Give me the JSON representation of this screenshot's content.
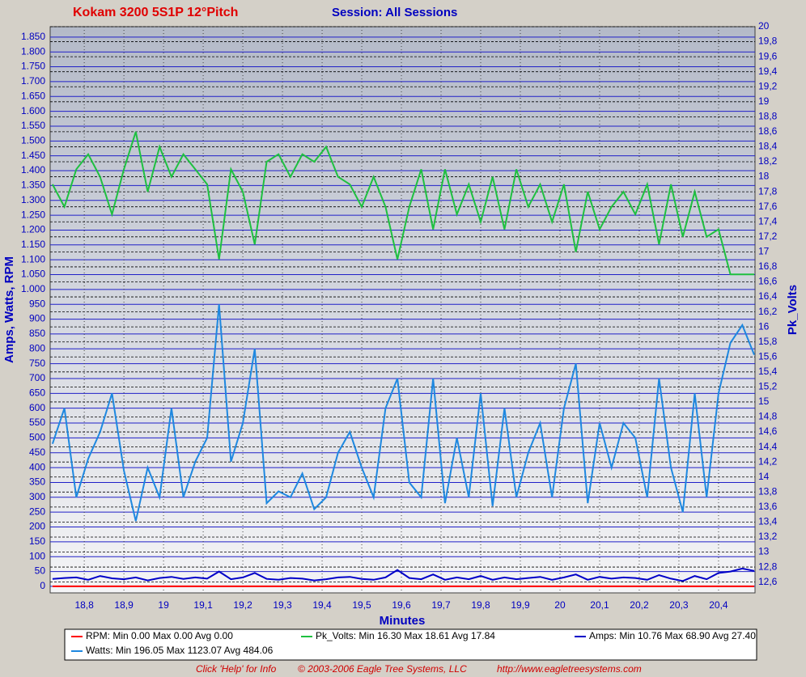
{
  "chart_data": {
    "type": "line",
    "title": "Kokam 3200 5S1P 12°Pitch",
    "subtitle": "Session: All Sessions",
    "x_label": "Minutes",
    "y_label": "Amps, Watts, RPM",
    "y2_label": "Pk_Volts",
    "xlim": [
      18.714,
      20.492
    ],
    "ylim": [
      -22,
      1885
    ],
    "y2lim": [
      12.456,
      20
    ],
    "grid": true,
    "xticks": [
      {
        "value": 18.8,
        "label": "18,8"
      },
      {
        "value": 18.9,
        "label": "18,9"
      },
      19,
      {
        "value": 19.1,
        "label": "19,1"
      },
      {
        "value": 19.2,
        "label": "19,2"
      },
      {
        "value": 19.3,
        "label": "19,3"
      },
      {
        "value": 19.4,
        "label": "19,4"
      },
      {
        "value": 19.5,
        "label": "19,5"
      },
      {
        "value": 19.6,
        "label": "19,6"
      },
      {
        "value": 19.7,
        "label": "19,7"
      },
      {
        "value": 19.8,
        "label": "19,8"
      },
      {
        "value": 19.9,
        "label": "19,9"
      },
      20,
      {
        "value": 20.1,
        "label": "20,1"
      },
      {
        "value": 20.2,
        "label": "20,2"
      },
      {
        "value": 20.3,
        "label": "20,3"
      },
      {
        "value": 20.4,
        "label": "20,4"
      }
    ],
    "yticks": [
      0,
      50,
      100,
      150,
      200,
      250,
      300,
      350,
      400,
      450,
      500,
      550,
      600,
      650,
      700,
      750,
      800,
      850,
      900,
      950,
      {
        "value": 1000,
        "label": "1.000"
      },
      {
        "value": 1050,
        "label": "1.050"
      },
      {
        "value": 1100,
        "label": "1.100"
      },
      {
        "value": 1150,
        "label": "1.150"
      },
      {
        "value": 1200,
        "label": "1.200"
      },
      {
        "value": 1250,
        "label": "1.250"
      },
      {
        "value": 1300,
        "label": "1.300"
      },
      {
        "value": 1350,
        "label": "1.350"
      },
      {
        "value": 1400,
        "label": "1.400"
      },
      {
        "value": 1450,
        "label": "1.450"
      },
      {
        "value": 1500,
        "label": "1.500"
      },
      {
        "value": 1550,
        "label": "1.550"
      },
      {
        "value": 1600,
        "label": "1.600"
      },
      {
        "value": 1650,
        "label": "1.650"
      },
      {
        "value": 1700,
        "label": "1.700"
      },
      {
        "value": 1750,
        "label": "1.750"
      },
      {
        "value": 1800,
        "label": "1.800"
      },
      {
        "value": 1850,
        "label": "1.850"
      }
    ],
    "y2ticks": [
      {
        "value": 12.6,
        "label": "12,6"
      },
      {
        "value": 12.8,
        "label": "12,8"
      },
      13,
      {
        "value": 13.2,
        "label": "13,2"
      },
      {
        "value": 13.4,
        "label": "13,4"
      },
      {
        "value": 13.6,
        "label": "13,6"
      },
      {
        "value": 13.8,
        "label": "13,8"
      },
      14,
      {
        "value": 14.2,
        "label": "14,2"
      },
      {
        "value": 14.4,
        "label": "14,4"
      },
      {
        "value": 14.6,
        "label": "14,6"
      },
      {
        "value": 14.8,
        "label": "14,8"
      },
      15,
      {
        "value": 15.2,
        "label": "15,2"
      },
      {
        "value": 15.4,
        "label": "15,4"
      },
      {
        "value": 15.6,
        "label": "15,6"
      },
      {
        "value": 15.8,
        "label": "15,8"
      },
      16,
      {
        "value": 16.2,
        "label": "16,2"
      },
      {
        "value": 16.4,
        "label": "16,4"
      },
      {
        "value": 16.6,
        "label": "16,6"
      },
      {
        "value": 16.8,
        "label": "16,8"
      },
      17,
      {
        "value": 17.2,
        "label": "17,2"
      },
      {
        "value": 17.4,
        "label": "17,4"
      },
      {
        "value": 17.6,
        "label": "17,6"
      },
      {
        "value": 17.8,
        "label": "17,8"
      },
      18,
      {
        "value": 18.2,
        "label": "18,2"
      },
      {
        "value": 18.4,
        "label": "18,4"
      },
      {
        "value": 18.6,
        "label": "18,6"
      },
      {
        "value": 18.8,
        "label": "18,8"
      },
      19,
      {
        "value": 19.2,
        "label": "19,2"
      },
      {
        "value": 19.4,
        "label": "19,4"
      },
      {
        "value": 19.6,
        "label": "19,6"
      },
      {
        "value": 19.8,
        "label": "19,8"
      },
      20
    ],
    "x": [
      18.72,
      18.75,
      18.78,
      18.81,
      18.84,
      18.87,
      18.9,
      18.93,
      18.96,
      18.99,
      19.02,
      19.05,
      19.08,
      19.11,
      19.14,
      19.17,
      19.2,
      19.23,
      19.26,
      19.29,
      19.32,
      19.35,
      19.38,
      19.41,
      19.44,
      19.47,
      19.5,
      19.53,
      19.56,
      19.59,
      19.62,
      19.65,
      19.68,
      19.71,
      19.74,
      19.77,
      19.8,
      19.83,
      19.86,
      19.89,
      19.92,
      19.95,
      19.98,
      20.01,
      20.04,
      20.07,
      20.1,
      20.13,
      20.16,
      20.19,
      20.22,
      20.25,
      20.28,
      20.31,
      20.34,
      20.37,
      20.4,
      20.43,
      20.46,
      20.49
    ],
    "series": [
      {
        "name": "RPM",
        "legend_label": "RPM:  Min 0.00 Max 0.00 Avg 0.00",
        "color": "#ff0000",
        "axis": "y",
        "values": [
          0,
          0,
          0,
          0,
          0,
          0,
          0,
          0,
          0,
          0,
          0,
          0,
          0,
          0,
          0,
          0,
          0,
          0,
          0,
          0,
          0,
          0,
          0,
          0,
          0,
          0,
          0,
          0,
          0,
          0,
          0,
          0,
          0,
          0,
          0,
          0,
          0,
          0,
          0,
          0,
          0,
          0,
          0,
          0,
          0,
          0,
          0,
          0,
          0,
          0,
          0,
          0,
          0,
          0,
          0,
          0,
          0,
          0,
          0,
          0
        ]
      },
      {
        "name": "Pk_Volts",
        "legend_label": "Pk_Volts:  Min 16.30 Max 18.61 Avg 17.84",
        "color": "#1ec040",
        "axis": "y2",
        "values": [
          17.9,
          17.6,
          18.1,
          18.3,
          18.0,
          17.5,
          18.1,
          18.6,
          17.8,
          18.4,
          18.0,
          18.3,
          18.1,
          17.9,
          16.9,
          18.1,
          17.8,
          17.1,
          18.2,
          18.3,
          18.0,
          18.3,
          18.2,
          18.4,
          18.0,
          17.9,
          17.6,
          18.0,
          17.6,
          16.9,
          17.6,
          18.1,
          17.3,
          18.1,
          17.5,
          17.9,
          17.4,
          18.0,
          17.3,
          18.1,
          17.6,
          17.9,
          17.4,
          17.9,
          17.0,
          17.8,
          17.3,
          17.6,
          17.8,
          17.5,
          17.9,
          17.1,
          17.9,
          17.2,
          17.8,
          17.2,
          17.3,
          16.7,
          16.7,
          16.7
        ]
      },
      {
        "name": "Amps",
        "legend_label": "Amps:  Min 10.76 Max 68.90 Avg 27.40",
        "color": "#0000c8",
        "axis": "y",
        "values": [
          25,
          28,
          30,
          22,
          35,
          27,
          24,
          30,
          20,
          28,
          32,
          25,
          30,
          26,
          50,
          24,
          30,
          45,
          25,
          22,
          28,
          26,
          20,
          24,
          30,
          32,
          25,
          22,
          30,
          55,
          28,
          24,
          40,
          22,
          30,
          24,
          35,
          22,
          30,
          24,
          28,
          32,
          22,
          30,
          40,
          22,
          32,
          26,
          30,
          28,
          22,
          38,
          26,
          18,
          35,
          24,
          45,
          50,
          60,
          52
        ]
      },
      {
        "name": "Watts",
        "legend_label": "Watts:  Min 196.05 Max 1123.07 Avg 484.06",
        "color": "#1e88e0",
        "axis": "y",
        "values": [
          480,
          600,
          300,
          430,
          520,
          650,
          390,
          220,
          400,
          300,
          600,
          300,
          420,
          500,
          950,
          420,
          550,
          800,
          280,
          320,
          300,
          380,
          260,
          300,
          450,
          520,
          400,
          300,
          600,
          700,
          350,
          300,
          700,
          280,
          500,
          300,
          650,
          270,
          600,
          300,
          450,
          550,
          300,
          600,
          750,
          280,
          550,
          400,
          550,
          500,
          300,
          700,
          400,
          250,
          650,
          300,
          650,
          820,
          880,
          780
        ]
      }
    ],
    "footer": {
      "help": "Click 'Help' for Info",
      "copyright": "© 2003-2006 Eagle Tree Systems, LLC",
      "url": "http://www.eagletreesystems.com"
    }
  }
}
